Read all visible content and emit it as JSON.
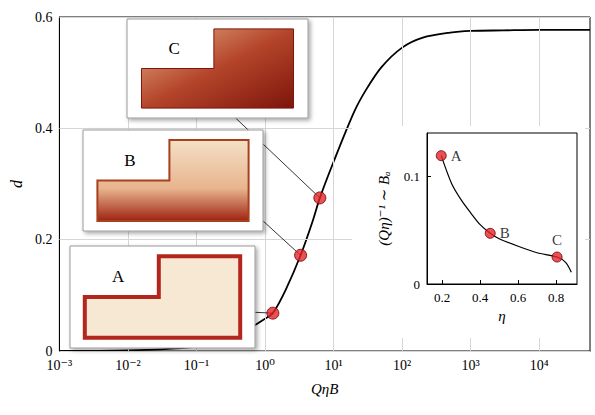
{
  "chart_data": [
    {
      "type": "line",
      "xlabel": "QηB",
      "ylabel": "d",
      "log": "x",
      "grid": true,
      "xlim": [
        0.001,
        55000
      ],
      "xticks": [
        {
          "value": 0.001,
          "label": "10⁻³"
        },
        {
          "value": 0.01,
          "label": "10⁻²"
        },
        {
          "value": 0.1,
          "label": "10⁻¹"
        },
        {
          "value": 1,
          "label": "10⁰"
        },
        {
          "value": 10,
          "label": "10¹"
        },
        {
          "value": 100,
          "label": "10²"
        },
        {
          "value": 1000,
          "label": "10³"
        },
        {
          "value": 10000,
          "label": "10⁴"
        }
      ],
      "ylim": [
        0,
        0.6
      ],
      "yticks": [
        0,
        0.2,
        0.4,
        0.6
      ],
      "color": "#000000",
      "x": [
        0.001,
        0.003,
        0.01,
        0.03,
        0.1,
        0.2,
        0.3,
        0.5,
        1,
        1.3,
        2,
        3.3,
        5,
        6.3,
        10,
        20,
        30,
        50,
        100,
        200,
        500,
        1000,
        3000,
        10000,
        55000
      ],
      "values": [
        0,
        0.0003,
        0.001,
        0.003,
        0.008,
        0.015,
        0.022,
        0.035,
        0.058,
        0.068,
        0.11,
        0.172,
        0.235,
        0.275,
        0.34,
        0.43,
        0.47,
        0.51,
        0.545,
        0.563,
        0.572,
        0.575,
        0.576,
        0.577,
        0.577
      ],
      "points": {
        "labels": [
          "A",
          "B",
          "C"
        ],
        "x": [
          1.3,
          3.3,
          6.3
        ],
        "values": [
          0.068,
          0.172,
          0.275
        ],
        "color": "#e3262b"
      }
    },
    {
      "type": "line",
      "xlabel": "η",
      "ylabel": "(Qη)⁻¹ ∼ Bₐ",
      "grid": false,
      "xlim": [
        0.12,
        0.91
      ],
      "xticks": [
        0.2,
        0.4,
        0.6,
        0.8
      ],
      "ylim": [
        0,
        0.14
      ],
      "yticks": [
        0,
        0.1
      ],
      "color": "#000000",
      "x": [
        0.195,
        0.25,
        0.3,
        0.35,
        0.4,
        0.453,
        0.5,
        0.6,
        0.7,
        0.805,
        0.85,
        0.88
      ],
      "values": [
        0.119,
        0.093,
        0.078,
        0.066,
        0.055,
        0.047,
        0.042,
        0.035,
        0.029,
        0.025,
        0.02,
        0.011
      ],
      "points": {
        "labels": [
          "A",
          "B",
          "C"
        ],
        "x": [
          0.195,
          0.453,
          0.805
        ],
        "values": [
          0.119,
          0.047,
          0.025
        ],
        "color": "#e3262b"
      }
    }
  ]
}
